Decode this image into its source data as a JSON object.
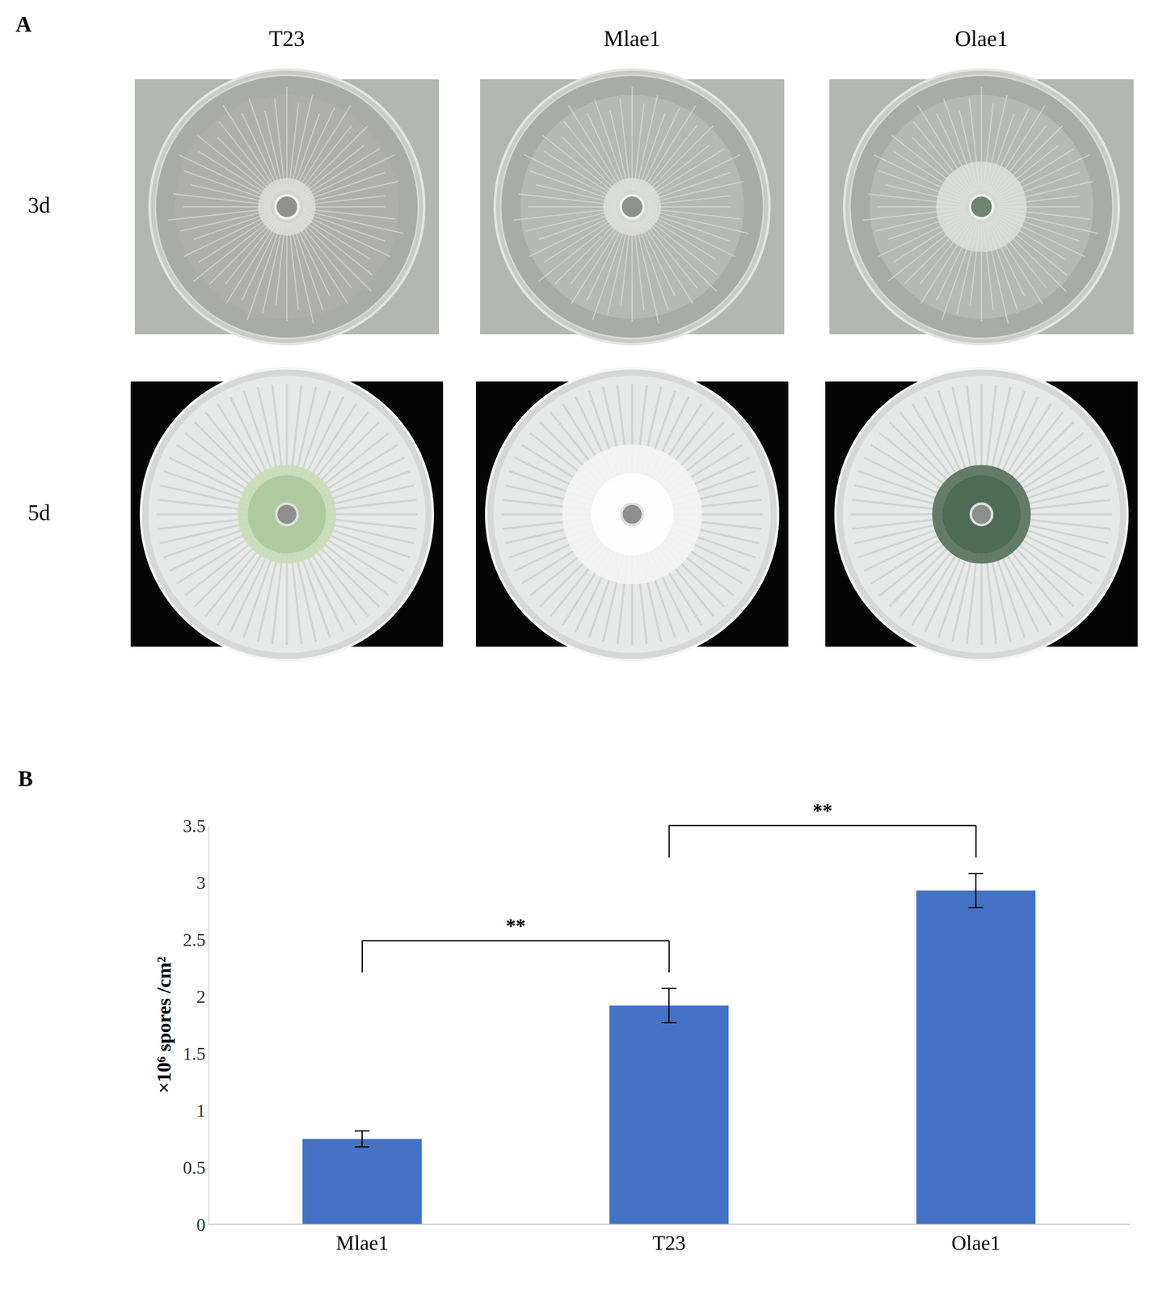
{
  "panel_labels": [
    "A",
    "B"
  ],
  "panel_a": {
    "columns": [
      "T23",
      "Mlae1",
      "Olae1"
    ],
    "rows": [
      "3d",
      "5d"
    ]
  },
  "chart_data": {
    "type": "bar",
    "categories": [
      "Mlae1",
      "T23",
      "Olae1"
    ],
    "values": [
      0.75,
      1.92,
      2.93
    ],
    "errors": [
      0.07,
      0.15,
      0.15
    ],
    "color": "#4472c4",
    "ylabel": "×10⁶ spores /cm²",
    "ylim": [
      0,
      3.5
    ],
    "yticks": [
      0,
      0.5,
      1,
      1.5,
      2,
      2.5,
      3,
      3.5
    ],
    "grid": false,
    "significance": [
      {
        "pair": [
          "Mlae1",
          "T23"
        ],
        "label": "**"
      },
      {
        "pair": [
          "T23",
          "Olae1"
        ],
        "label": "**"
      }
    ]
  }
}
